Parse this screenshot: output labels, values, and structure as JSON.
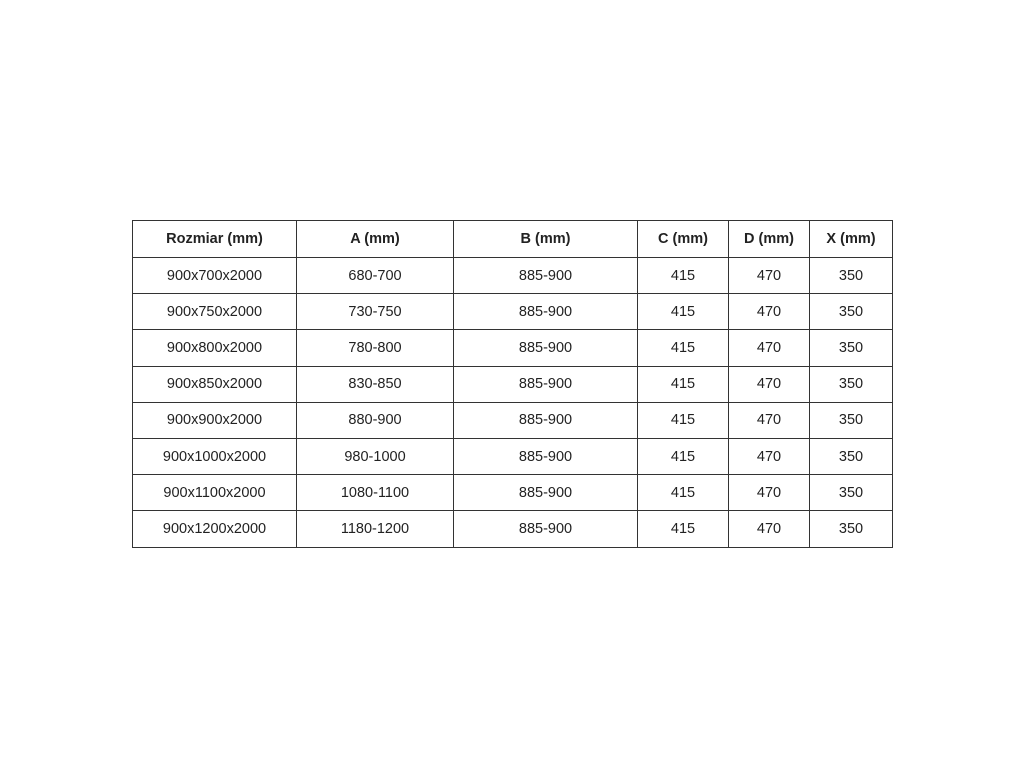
{
  "table": {
    "headers": [
      "Rozmiar (mm)",
      "A (mm)",
      "B (mm)",
      "C (mm)",
      "D (mm)",
      "X (mm)"
    ],
    "rows": [
      [
        "900x700x2000",
        "680-700",
        "885-900",
        "415",
        "470",
        "350"
      ],
      [
        "900x750x2000",
        "730-750",
        "885-900",
        "415",
        "470",
        "350"
      ],
      [
        "900x800x2000",
        "780-800",
        "885-900",
        "415",
        "470",
        "350"
      ],
      [
        "900x850x2000",
        "830-850",
        "885-900",
        "415",
        "470",
        "350"
      ],
      [
        "900x900x2000",
        "880-900",
        "885-900",
        "415",
        "470",
        "350"
      ],
      [
        "900x1000x2000",
        "980-1000",
        "885-900",
        "415",
        "470",
        "350"
      ],
      [
        "900x1100x2000",
        "1080-1100",
        "885-900",
        "415",
        "470",
        "350"
      ],
      [
        "900x1200x2000",
        "1180-1200",
        "885-900",
        "415",
        "470",
        "350"
      ]
    ]
  }
}
